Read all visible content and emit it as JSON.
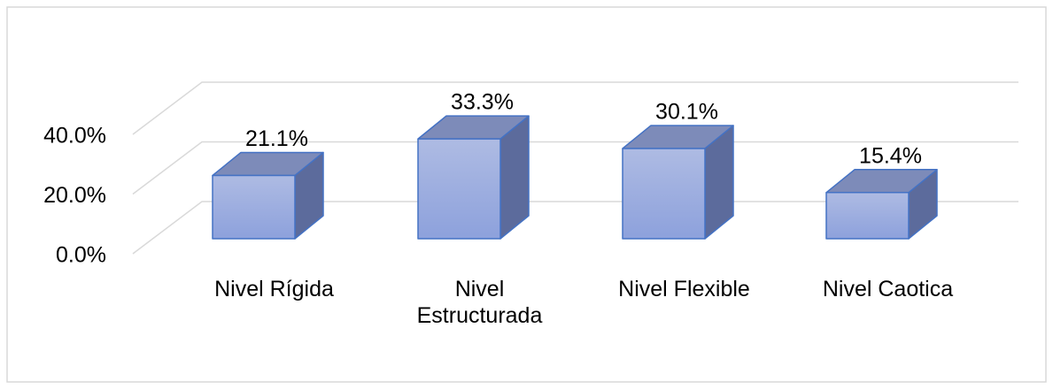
{
  "chart_data": {
    "type": "bar3d",
    "categories": [
      "Nivel Rígida",
      "Nivel Estructurada",
      "Nivel Flexible",
      "Nivel Caotica"
    ],
    "values": [
      21.1,
      33.3,
      30.1,
      15.4
    ],
    "value_labels": [
      "21.1%",
      "33.3%",
      "30.1%",
      "15.4%"
    ],
    "color": "#9aabdf",
    "ylim": [
      0,
      40
    ],
    "yticks": [
      {
        "value": 0,
        "label": "0.0%"
      },
      {
        "value": 20,
        "label": "20.0%"
      },
      {
        "value": 40,
        "label": "40.0%"
      }
    ],
    "grid": true
  }
}
